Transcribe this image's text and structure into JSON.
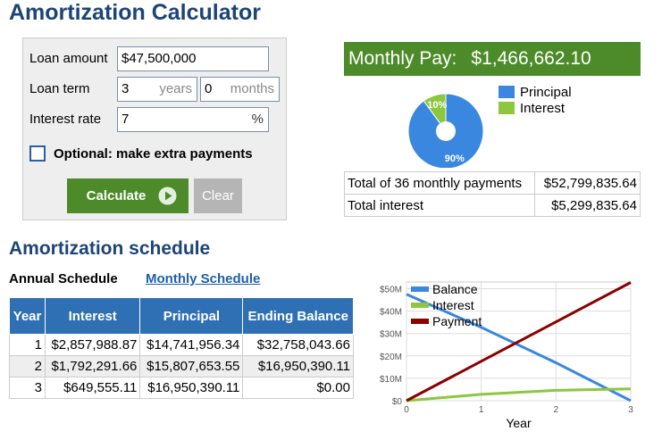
{
  "title": "Amortization Calculator",
  "form": {
    "loan_amount_label": "Loan amount",
    "loan_amount": "$47,500,000",
    "loan_term_label": "Loan term",
    "years": "3",
    "years_unit": "years",
    "months": "0",
    "months_unit": "months",
    "interest_rate_label": "Interest rate",
    "interest_rate": "7",
    "percent_sign": "%",
    "extra_label": "Optional: make extra payments",
    "calculate": "Calculate",
    "clear": "Clear"
  },
  "summary": {
    "monthly_pay_label": "Monthly Pay:",
    "monthly_pay": "$1,466,662.10",
    "rows": [
      [
        "Total of 36 monthly payments",
        "$52,799,835.64"
      ],
      [
        "Total interest",
        "$5,299,835.64"
      ]
    ]
  },
  "pie": {
    "type": "pie",
    "categories": [
      "Principal",
      "Interest"
    ],
    "values": [
      90,
      10
    ],
    "value_labels": [
      "90%",
      "10%"
    ],
    "colors": [
      "#3a87e0",
      "#8dc63f"
    ]
  },
  "schedule": {
    "title": "Amortization schedule",
    "tabs": [
      "Annual Schedule",
      "Monthly Schedule"
    ],
    "columns": [
      "Year",
      "Interest",
      "Principal",
      "Ending Balance"
    ],
    "rows": [
      [
        "1",
        "$2,857,988.87",
        "$14,741,956.34",
        "$32,758,043.66"
      ],
      [
        "2",
        "$1,792,291.66",
        "$15,807,653.55",
        "$16,950,390.11"
      ],
      [
        "3",
        "$649,555.11",
        "$16,950,390.11",
        "$0.00"
      ]
    ]
  },
  "chart": {
    "type": "line",
    "xlabel": "Year",
    "x": [
      0,
      1,
      2,
      3
    ],
    "xlim": [
      0,
      3
    ],
    "xticks": [
      0,
      1,
      2,
      3
    ],
    "ylim": [
      0,
      53000000
    ],
    "yticks": [
      {
        "value": 0,
        "label": "$0"
      },
      {
        "value": 10000000,
        "label": "$10M"
      },
      {
        "value": 20000000,
        "label": "$20M"
      },
      {
        "value": 30000000,
        "label": "$30M"
      },
      {
        "value": 40000000,
        "label": "$40M"
      },
      {
        "value": 50000000,
        "label": "$50M"
      }
    ],
    "grid": true,
    "series": [
      {
        "name": "Balance",
        "color": "#3a87e0",
        "values": [
          47500000,
          32758043.66,
          16950390.11,
          0
        ]
      },
      {
        "name": "Interest",
        "color": "#8dc63f",
        "values": [
          0,
          2857988.87,
          4650280.53,
          5299835.64
        ]
      },
      {
        "name": "Payment",
        "color": "#8b0000",
        "values": [
          0,
          17599945.21,
          35199890.42,
          52799835.63
        ]
      }
    ]
  }
}
